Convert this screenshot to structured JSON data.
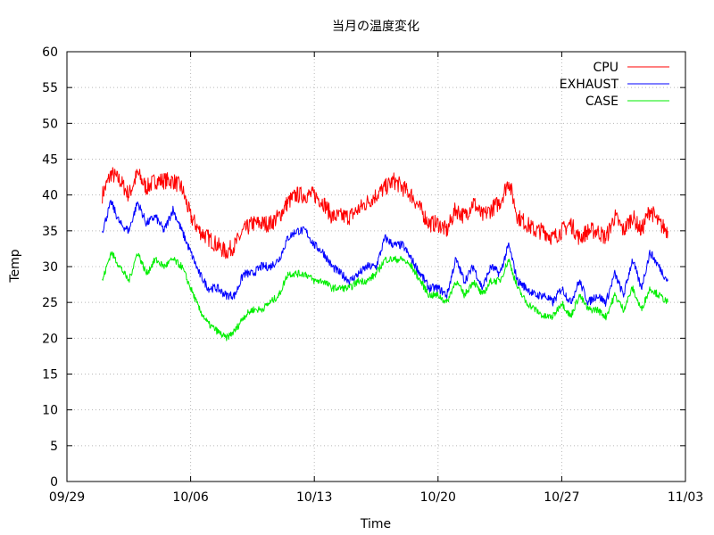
{
  "chart_data": {
    "type": "line",
    "title": "当月の温度変化",
    "xlabel": "Time",
    "ylabel": "Temp",
    "xlim": [
      "09/29",
      "11/03"
    ],
    "ylim": [
      0,
      60
    ],
    "x_ticks": [
      "09/29",
      "10/06",
      "10/13",
      "10/20",
      "10/27",
      "11/03"
    ],
    "y_ticks": [
      0,
      5,
      10,
      15,
      20,
      25,
      30,
      35,
      40,
      45,
      50,
      55,
      60
    ],
    "grid": true,
    "legend_position": "top-right",
    "series": [
      {
        "name": "CPU",
        "color": "#ff0000",
        "noise": 1.2,
        "x": [
          "10/01",
          "10/01.5",
          "10/02",
          "10/02.5",
          "10/03",
          "10/03.5",
          "10/04",
          "10/04.5",
          "10/05",
          "10/05.5",
          "10/06",
          "10/06.5",
          "10/07",
          "10/07.5",
          "10/08",
          "10/08.5",
          "10/09",
          "10/09.5",
          "10/10",
          "10/10.5",
          "10/11",
          "10/11.5",
          "10/12",
          "10/12.5",
          "10/13",
          "10/13.5",
          "10/14",
          "10/14.5",
          "10/15",
          "10/15.5",
          "10/16",
          "10/16.5",
          "10/17",
          "10/17.5",
          "10/18",
          "10/18.5",
          "10/19",
          "10/19.5",
          "10/20",
          "10/20.5",
          "10/21",
          "10/21.5",
          "10/22",
          "10/22.5",
          "10/23",
          "10/23.5",
          "10/24",
          "10/24.5",
          "10/25",
          "10/25.5",
          "10/26",
          "10/26.5",
          "10/27",
          "10/27.5",
          "10/28",
          "10/28.5",
          "10/29",
          "10/29.5",
          "10/30",
          "10/30.5",
          "10/31",
          "10/31.5",
          "11/01",
          "11/01.5",
          "11/02"
        ],
        "y": [
          40,
          43,
          42,
          40,
          43,
          41,
          42,
          42,
          42,
          41,
          37,
          35,
          34,
          33,
          32,
          33,
          35,
          36,
          36,
          36,
          37,
          39,
          40,
          40,
          40,
          39,
          37,
          37,
          37,
          38,
          39,
          40,
          41,
          42,
          41,
          40,
          38,
          36,
          36,
          35,
          38,
          37,
          39,
          37,
          38,
          39,
          42,
          37,
          36,
          35,
          35,
          34,
          35,
          36,
          34,
          35,
          35,
          34,
          37,
          35,
          37,
          35,
          38,
          36,
          35
        ]
      },
      {
        "name": "EXHAUST",
        "color": "#0000ff",
        "noise": 0.6,
        "x": [
          "10/01",
          "10/01.5",
          "10/02",
          "10/02.5",
          "10/03",
          "10/03.5",
          "10/04",
          "10/04.5",
          "10/05",
          "10/05.5",
          "10/06",
          "10/06.5",
          "10/07",
          "10/07.5",
          "10/08",
          "10/08.5",
          "10/09",
          "10/09.5",
          "10/10",
          "10/10.5",
          "10/11",
          "10/11.5",
          "10/12",
          "10/12.5",
          "10/13",
          "10/13.5",
          "10/14",
          "10/14.5",
          "10/15",
          "10/15.5",
          "10/16",
          "10/16.5",
          "10/17",
          "10/17.5",
          "10/18",
          "10/18.5",
          "10/19",
          "10/19.5",
          "10/20",
          "10/20.5",
          "10/21",
          "10/21.5",
          "10/22",
          "10/22.5",
          "10/23",
          "10/23.5",
          "10/24",
          "10/24.5",
          "10/25",
          "10/25.5",
          "10/26",
          "10/26.5",
          "10/27",
          "10/27.5",
          "10/28",
          "10/28.5",
          "10/29",
          "10/29.5",
          "10/30",
          "10/30.5",
          "10/31",
          "10/31.5",
          "11/01",
          "11/01.5",
          "11/02"
        ],
        "y": [
          35,
          39,
          36,
          35,
          39,
          36,
          37,
          35,
          38,
          35,
          32,
          29,
          27,
          27,
          26,
          26,
          29,
          29,
          30,
          30,
          31,
          34,
          35,
          35,
          33,
          32,
          30,
          29,
          28,
          29,
          30,
          30,
          34,
          33,
          33,
          31,
          29,
          27,
          27,
          26,
          31,
          28,
          30,
          27,
          30,
          29,
          33,
          28,
          27,
          26,
          26,
          25,
          27,
          25,
          28,
          25,
          26,
          25,
          29,
          26,
          31,
          27,
          32,
          30,
          28
        ]
      },
      {
        "name": "CASE",
        "color": "#00ee00",
        "noise": 0.5,
        "x": [
          "10/01",
          "10/01.5",
          "10/02",
          "10/02.5",
          "10/03",
          "10/03.5",
          "10/04",
          "10/04.5",
          "10/05",
          "10/05.5",
          "10/06",
          "10/06.5",
          "10/07",
          "10/07.5",
          "10/08",
          "10/08.5",
          "10/09",
          "10/09.5",
          "10/10",
          "10/10.5",
          "10/11",
          "10/11.5",
          "10/12",
          "10/12.5",
          "10/13",
          "10/13.5",
          "10/14",
          "10/14.5",
          "10/15",
          "10/15.5",
          "10/16",
          "10/16.5",
          "10/17",
          "10/17.5",
          "10/18",
          "10/18.5",
          "10/19",
          "10/19.5",
          "10/20",
          "10/20.5",
          "10/21",
          "10/21.5",
          "10/22",
          "10/22.5",
          "10/23",
          "10/23.5",
          "10/24",
          "10/24.5",
          "10/25",
          "10/25.5",
          "10/26",
          "10/26.5",
          "10/27",
          "10/27.5",
          "10/28",
          "10/28.5",
          "10/29",
          "10/29.5",
          "10/30",
          "10/30.5",
          "10/31",
          "10/31.5",
          "11/01",
          "11/01.5",
          "11/02"
        ],
        "y": [
          28,
          32,
          30,
          28,
          32,
          29,
          31,
          30,
          31,
          30,
          27,
          24,
          22,
          21,
          20,
          21,
          23,
          24,
          24,
          25,
          26,
          29,
          29,
          29,
          28,
          28,
          27,
          27,
          27,
          28,
          28,
          29,
          31,
          31,
          31,
          30,
          28,
          26,
          26,
          25,
          28,
          26,
          28,
          26,
          28,
          28,
          31,
          27,
          25,
          24,
          23,
          23,
          25,
          23,
          26,
          24,
          24,
          23,
          26,
          24,
          27,
          24,
          27,
          26,
          25
        ]
      }
    ]
  }
}
